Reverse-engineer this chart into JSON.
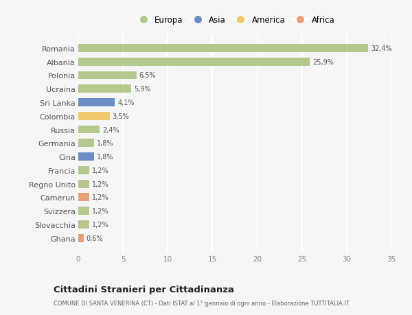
{
  "countries": [
    "Romania",
    "Albania",
    "Polonia",
    "Ucraina",
    "Sri Lanka",
    "Colombia",
    "Russia",
    "Germania",
    "Cina",
    "Francia",
    "Regno Unito",
    "Camerun",
    "Svizzera",
    "Slovacchia",
    "Ghana"
  ],
  "values": [
    32.4,
    25.9,
    6.5,
    5.9,
    4.1,
    3.5,
    2.4,
    1.8,
    1.8,
    1.2,
    1.2,
    1.2,
    1.2,
    1.2,
    0.6
  ],
  "labels": [
    "32,4%",
    "25,9%",
    "6,5%",
    "5,9%",
    "4,1%",
    "3,5%",
    "2,4%",
    "1,8%",
    "1,8%",
    "1,2%",
    "1,2%",
    "1,2%",
    "1,2%",
    "1,2%",
    "0,6%"
  ],
  "continents": [
    "Europa",
    "Europa",
    "Europa",
    "Europa",
    "Asia",
    "America",
    "Europa",
    "Europa",
    "Asia",
    "Europa",
    "Europa",
    "Africa",
    "Europa",
    "Europa",
    "Africa"
  ],
  "continent_colors": {
    "Europa": "#b5c98e",
    "Asia": "#6b8dc4",
    "America": "#f0c96e",
    "Africa": "#e8a07a"
  },
  "legend_order": [
    "Europa",
    "Asia",
    "America",
    "Africa"
  ],
  "title": "Cittadini Stranieri per Cittadinanza",
  "subtitle": "COMUNE DI SANTA VENERINA (CT) - Dati ISTAT al 1° gennaio di ogni anno - Elaborazione TUTTITALIA.IT",
  "xlim": [
    0,
    35
  ],
  "xticks": [
    0,
    5,
    10,
    15,
    20,
    25,
    30,
    35
  ],
  "background_color": "#f5f5f5",
  "grid_color": "#ffffff",
  "bar_height": 0.6
}
